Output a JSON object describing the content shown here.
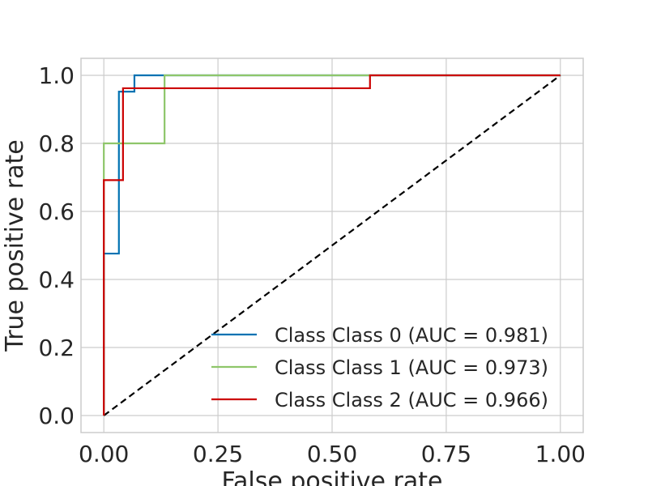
{
  "chart_data": {
    "type": "line",
    "title": "",
    "xlabel": "False positive rate",
    "ylabel": "True positive rate",
    "xlim": [
      -0.05,
      1.05
    ],
    "ylim": [
      -0.05,
      1.05
    ],
    "grid": true,
    "legend_position": "bottom-right",
    "xticks": [
      0.0,
      0.25,
      0.5,
      0.75,
      1.0
    ],
    "xtick_labels": [
      "0.00",
      "0.25",
      "0.50",
      "0.75",
      "1.00"
    ],
    "yticks": [
      0.0,
      0.2,
      0.4,
      0.6,
      0.8,
      1.0
    ],
    "ytick_labels": [
      "0.0",
      "0.2",
      "0.4",
      "0.6",
      "0.8",
      "1.0"
    ],
    "series": [
      {
        "name": "Class Class 0 (AUC = 0.981)",
        "color": "#0072b2",
        "step": true,
        "x": [
          0.0,
          0.0,
          0.033,
          0.033,
          0.067,
          0.067,
          1.0
        ],
        "y": [
          0.0,
          0.476,
          0.476,
          0.952,
          0.952,
          1.0,
          1.0
        ]
      },
      {
        "name": "Class Class 1 (AUC = 0.973)",
        "color": "#8ec66a",
        "step": true,
        "x": [
          0.0,
          0.0,
          0.133,
          0.133,
          1.0
        ],
        "y": [
          0.0,
          0.8,
          0.8,
          1.0,
          1.0
        ]
      },
      {
        "name": "Class Class 2 (AUC = 0.966)",
        "color": "#cc0000",
        "step": true,
        "x": [
          0.0,
          0.0,
          0.042,
          0.042,
          0.583,
          0.583,
          1.0
        ],
        "y": [
          0.0,
          0.692,
          0.692,
          0.962,
          0.962,
          1.0,
          1.0
        ]
      },
      {
        "name": "",
        "color": "#000000",
        "dashed": true,
        "x": [
          0.0,
          1.0
        ],
        "y": [
          0.0,
          1.0
        ]
      }
    ]
  }
}
